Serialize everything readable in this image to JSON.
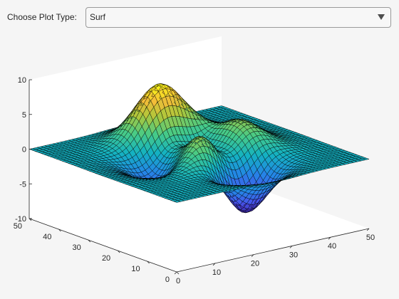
{
  "controls": {
    "plot_type_label": "Choose Plot Type:",
    "plot_type_value": "Surf"
  },
  "chart_data": {
    "type": "surface",
    "function": "peaks",
    "x_range": [
      0,
      50
    ],
    "y_range": [
      0,
      50
    ],
    "zlim": [
      -10,
      10
    ],
    "x_ticks": [
      0,
      10,
      20,
      30,
      40,
      50
    ],
    "y_ticks": [
      0,
      10,
      20,
      30,
      40,
      50
    ],
    "z_ticks": [
      -10,
      -5,
      0,
      5,
      10
    ],
    "x_tick_labels": [
      "0",
      "10",
      "20",
      "30",
      "40",
      "50"
    ],
    "y_tick_labels": [
      "0",
      "10",
      "20",
      "30",
      "40",
      "50"
    ],
    "z_tick_labels": [
      "-10",
      "-5",
      "0",
      "5",
      "10"
    ],
    "colormap": "parula",
    "edge_color": "#000000",
    "grid": false,
    "box": "on"
  }
}
